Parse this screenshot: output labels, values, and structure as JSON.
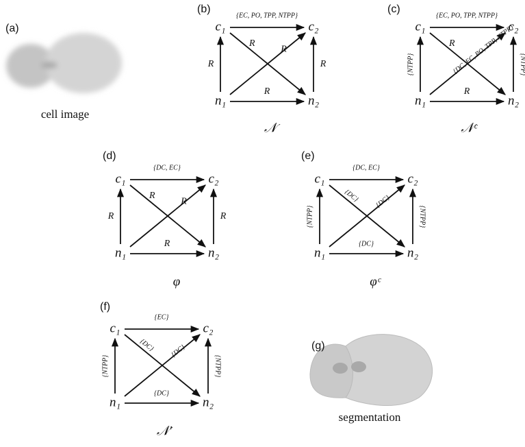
{
  "panels": [
    {
      "label": "(a)",
      "caption": "cell image"
    },
    {
      "label": "(b)",
      "caption": "𝒩",
      "nodes": [
        "c₁",
        "c₂",
        "n₁",
        "n₂"
      ],
      "edges": {
        "top": "{EC, PO, TPP, NTPP}",
        "left": "R",
        "right": "R",
        "bottom": "R",
        "diag_down": "R",
        "diag_up": "R"
      }
    },
    {
      "label": "(c)",
      "caption": "𝒩ᶜ",
      "nodes": [
        "c₁",
        "c₂",
        "n₁",
        "n₂"
      ],
      "edges": {
        "top": "{EC, PO, TPP, NTPP}",
        "left": "{NTPP}",
        "right": "{NTPP}",
        "bottom": "R",
        "diag_down": "R",
        "diag_up": "{DC, EC, PO, TPP, NTPP}"
      }
    },
    {
      "label": "(d)",
      "caption": "φ",
      "nodes": [
        "c₁",
        "c₂",
        "n₁",
        "n₂"
      ],
      "edges": {
        "top": "{DC, EC}",
        "left": "R",
        "right": "R",
        "bottom": "R",
        "diag_down": "R",
        "diag_up": "R"
      }
    },
    {
      "label": "(e)",
      "caption": "φᶜ",
      "nodes": [
        "c₁",
        "c₂",
        "n₁",
        "n₂"
      ],
      "edges": {
        "top": "{DC, EC}",
        "left": "{NTPP}",
        "right": "{NTPP}",
        "bottom": "{DC}",
        "diag_down": "{DC}",
        "diag_up": "{DC}"
      }
    },
    {
      "label": "(f)",
      "caption": "𝒩′",
      "nodes": [
        "c₁",
        "c₂",
        "n₁",
        "n₂"
      ],
      "edges": {
        "top": "{EC}",
        "left": "{NTPP}",
        "right": "{NTPP}",
        "bottom": "{DC}",
        "diag_down": "{DC}",
        "diag_up": "{DC}"
      }
    },
    {
      "label": "(g)",
      "caption": "segmentation"
    }
  ]
}
